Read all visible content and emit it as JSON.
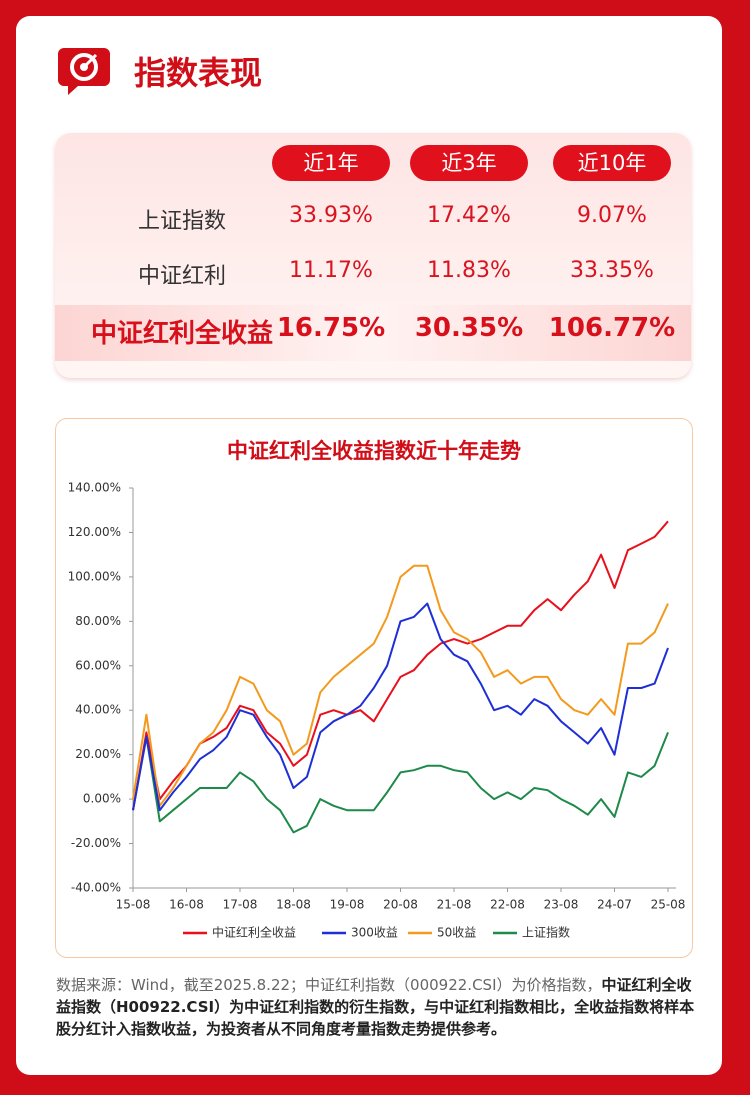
{
  "header": {
    "title": "指数表现"
  },
  "table": {
    "columns": [
      "近1年",
      "近3年",
      "近10年"
    ],
    "rows": [
      [
        "上证指数",
        "33.93%",
        "17.42%",
        "9.07%"
      ],
      [
        "中证红利",
        "11.17%",
        "11.83%",
        "33.35%"
      ],
      [
        "中证红利全收益",
        "16.75%",
        "30.35%",
        "106.77%"
      ]
    ]
  },
  "chart_data": {
    "type": "line",
    "title": "中证红利全收益指数近十年走势",
    "categories": [
      "15-08",
      null,
      null,
      null,
      "16-08",
      null,
      null,
      null,
      "17-08",
      null,
      null,
      null,
      "18-08",
      null,
      null,
      null,
      "19-08",
      null,
      null,
      null,
      "20-08",
      null,
      null,
      null,
      "21-08",
      null,
      null,
      null,
      "22-08",
      null,
      null,
      null,
      "23-08",
      null,
      null,
      null,
      "24-07",
      null,
      null,
      null,
      "25-08"
    ],
    "ylim": [
      -40,
      140
    ],
    "yticks": [
      {
        "value": -40,
        "label": "-40.00%"
      },
      {
        "value": -20,
        "label": "-20.00%"
      },
      {
        "value": 0,
        "label": "0.00%"
      },
      {
        "value": 20,
        "label": "20.00%"
      },
      {
        "value": 40,
        "label": "40.00%"
      },
      {
        "value": 60,
        "label": "60.00%"
      },
      {
        "value": 80,
        "label": "80.00%"
      },
      {
        "value": 100,
        "label": "100.00%"
      },
      {
        "value": 120,
        "label": "120.00%"
      },
      {
        "value": 140,
        "label": "140.00%"
      }
    ],
    "grid": false,
    "series": [
      {
        "name": "中证红利全收益",
        "color": "#e8101c",
        "values": [
          -5,
          30,
          0,
          8,
          15,
          25,
          28,
          32,
          42,
          40,
          30,
          25,
          15,
          20,
          38,
          40,
          38,
          40,
          35,
          45,
          55,
          58,
          65,
          70,
          72,
          70,
          72,
          75,
          78,
          78,
          85,
          90,
          85,
          92,
          98,
          110,
          95,
          112,
          115,
          118,
          125
        ]
      },
      {
        "name": "300收益",
        "color": "#1f2fd6",
        "values": [
          -5,
          28,
          -5,
          3,
          10,
          18,
          22,
          28,
          40,
          38,
          28,
          20,
          5,
          10,
          30,
          35,
          38,
          42,
          50,
          60,
          80,
          82,
          88,
          72,
          65,
          62,
          52,
          40,
          42,
          38,
          45,
          42,
          35,
          30,
          25,
          32,
          20,
          50,
          50,
          52,
          68
        ]
      },
      {
        "name": "50收益",
        "color": "#f39a1e",
        "values": [
          0,
          38,
          -3,
          5,
          15,
          25,
          30,
          40,
          55,
          52,
          40,
          35,
          20,
          25,
          48,
          55,
          60,
          65,
          70,
          82,
          100,
          105,
          105,
          85,
          75,
          72,
          66,
          55,
          58,
          52,
          55,
          55,
          45,
          40,
          38,
          45,
          38,
          70,
          70,
          75,
          88
        ]
      },
      {
        "name": "上证指数",
        "color": "#1e8a4a",
        "values": [
          -5,
          28,
          -10,
          -5,
          0,
          5,
          5,
          5,
          12,
          8,
          0,
          -5,
          -15,
          -12,
          0,
          -3,
          -5,
          -5,
          -5,
          3,
          12,
          13,
          15,
          15,
          13,
          12,
          5,
          0,
          3,
          0,
          5,
          4,
          0,
          -3,
          -7,
          0,
          -8,
          12,
          10,
          15,
          30
        ]
      }
    ]
  },
  "footnote": [
    "数据来源：Wind，截至2025.8.22；中证红利指数（000922.CSI）为价格指数，",
    "中证红利全收益指数（H00922.CSI）为中证红利指数的衍生指数，与中证红利指数相比，全收益指数将样本股分红计入指数收益，为投资者从不同角度考量指数走势提供参考。"
  ]
}
